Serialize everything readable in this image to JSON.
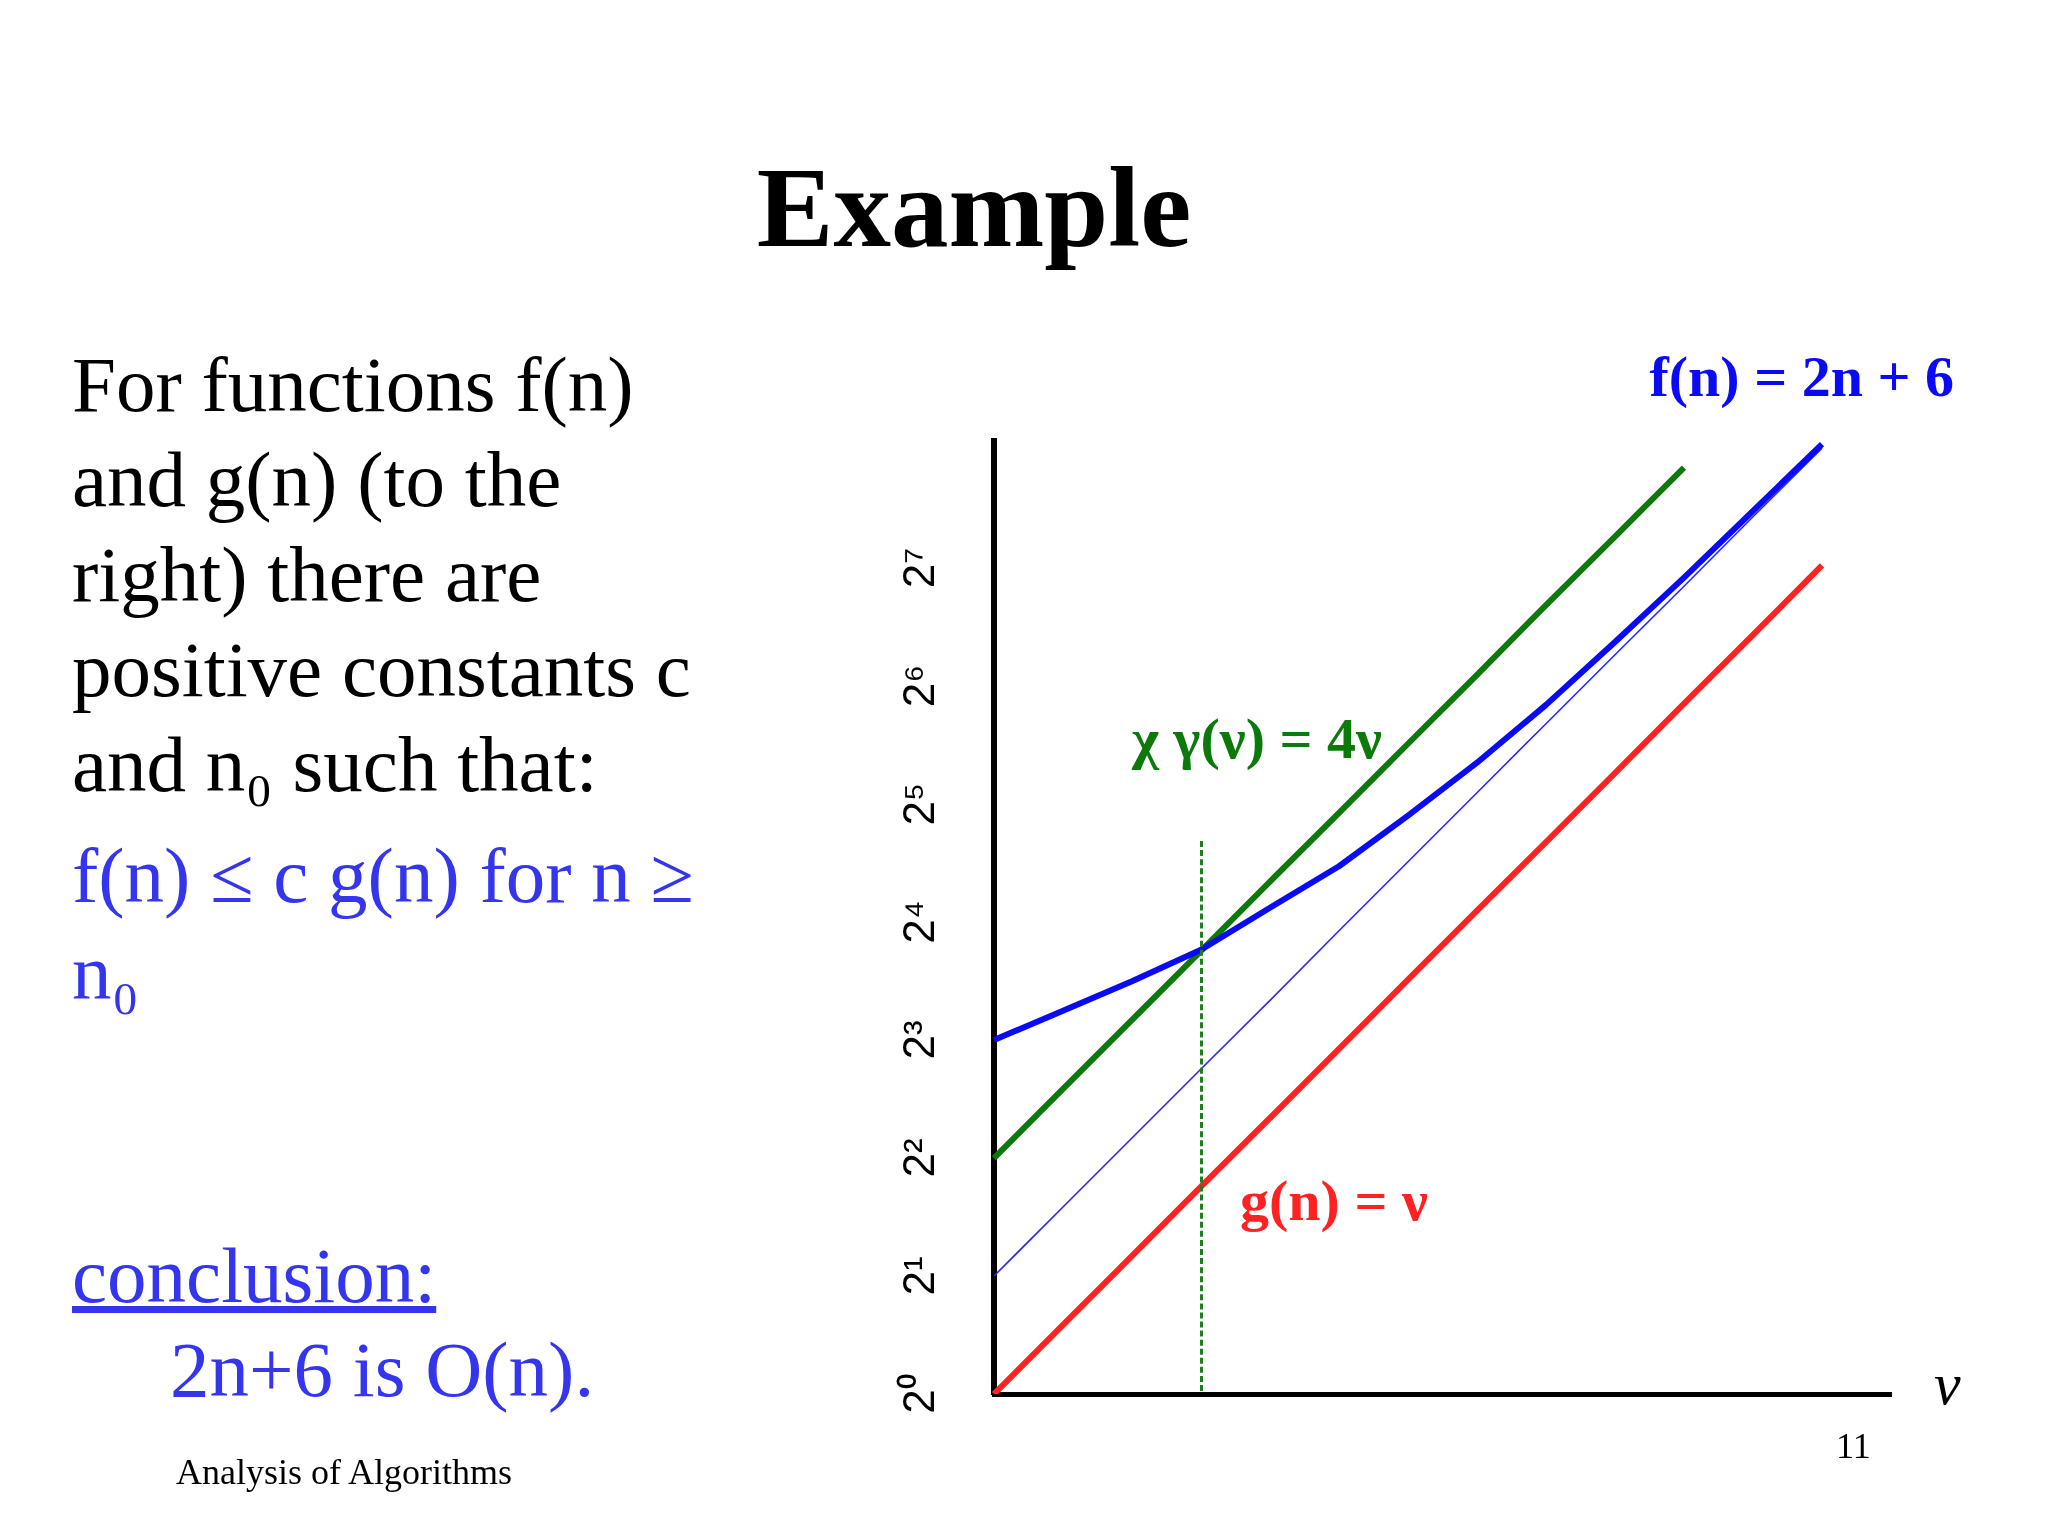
{
  "chart_data": {
    "type": "line",
    "title": "Example",
    "xlabel": "ν",
    "categories": [
      null,
      null,
      null,
      null,
      null,
      null,
      null,
      null,
      null,
      null,
      null,
      null,
      null,
      null
    ],
    "series": [
      {
        "name": "f(n) = 2n + 6",
        "color": "#0a0af5",
        "values": [
          8,
          9.5,
          11.3,
          13.6,
          17.4,
          22.2,
          29.9,
          40.8,
          57.3,
          82.9,
          121,
          179,
          265,
          null
        ]
      },
      {
        "color": "#2a2ae6",
        "values": [
          2,
          3,
          4.5,
          6.75,
          10.1,
          15.2,
          22.8,
          34.2,
          51.3,
          76.9,
          115,
          173,
          259,
          null
        ]
      },
      {
        "name": "χ γ(ν) = 4ν",
        "color": "#0b7a0b",
        "values": [
          4,
          6,
          9,
          13.5,
          20.3,
          30.4,
          45.6,
          68.3,
          103,
          154,
          231,
          null,
          null,
          null
        ]
      },
      {
        "name": "g(n) = ν",
        "color": "#ff2222",
        "values": [
          1,
          1.5,
          2.25,
          3.38,
          5.06,
          7.59,
          11.4,
          17.1,
          25.6,
          38.4,
          57.7,
          86.5,
          130,
          null
        ]
      }
    ],
    "log": "y",
    "ylim": [
      1,
      270
    ],
    "yticks": [
      {
        "value": 1,
        "label": "2⁰"
      },
      {
        "value": 2,
        "label": "2¹"
      },
      {
        "value": 4,
        "label": "2²"
      },
      {
        "value": 8,
        "label": "2³"
      },
      {
        "value": 16,
        "label": "2⁴"
      },
      {
        "value": 32,
        "label": "2⁵"
      },
      {
        "value": 64,
        "label": "2⁶"
      },
      {
        "value": 128,
        "label": "2⁷"
      }
    ],
    "tick_labels": "y",
    "legend": false,
    "marker": "none",
    "line_style": "solid",
    "annotations": [
      "For functions f(n) and g(n) (to the right) there are positive constants c and n₀ such that:",
      "f(n) ≤ c g(n) for n ≥ n₀",
      "conclusion:",
      "2n+6 is O(n).",
      "Analysis of Algorithms",
      "11"
    ]
  }
}
